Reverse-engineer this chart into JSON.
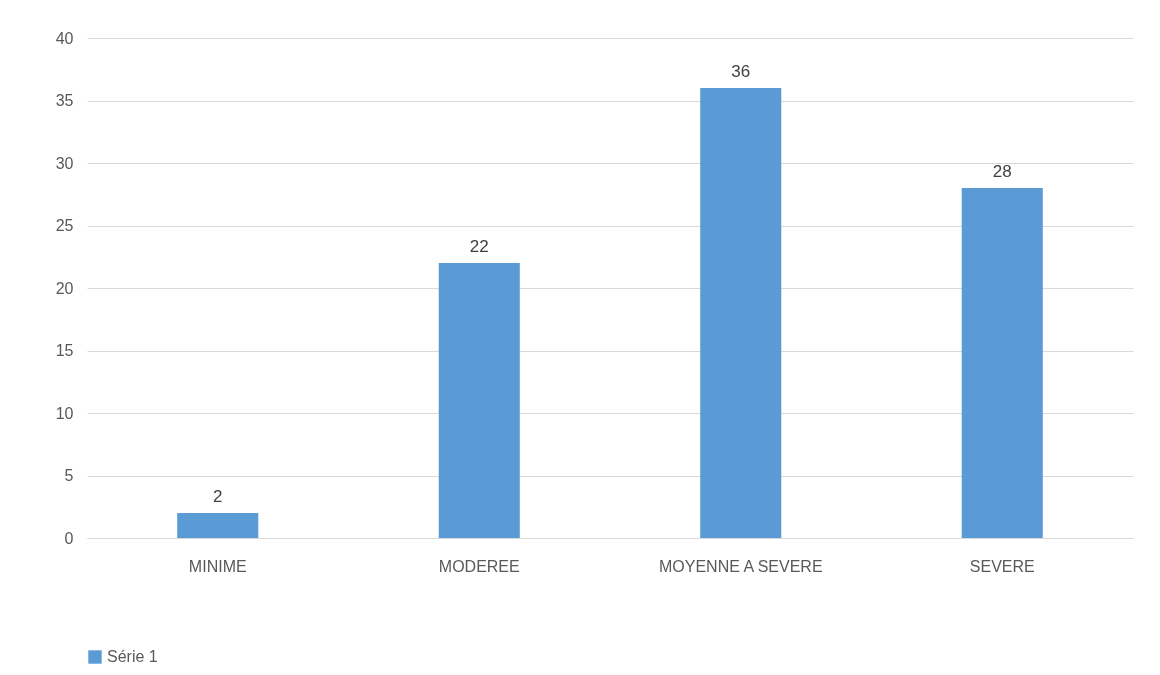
{
  "chart_data": {
    "type": "bar",
    "categories": [
      "MINIME",
      "MODEREE",
      "MOYENNE A SEVERE",
      "SEVERE"
    ],
    "series": [
      {
        "name": "Série 1",
        "color": "#5b9bd5",
        "values": [
          2,
          22,
          36,
          28
        ]
      }
    ],
    "ylim": [
      0,
      40
    ],
    "yticks": [
      0,
      5,
      10,
      15,
      20,
      25,
      30,
      35,
      40
    ],
    "grid": "y",
    "legend": "bottom",
    "data_labels": true
  }
}
